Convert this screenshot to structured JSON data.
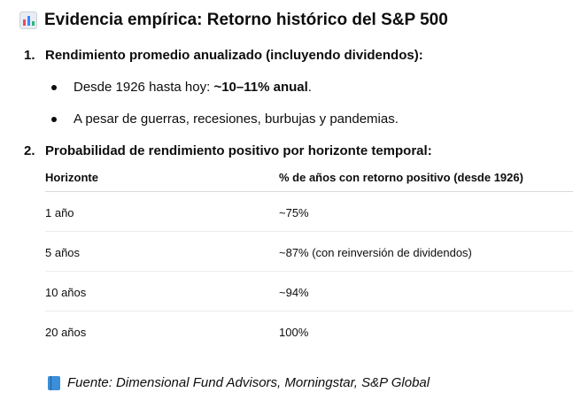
{
  "title": "Evidencia empírica: Retorno histórico del S&P 500",
  "title_icon": "bar-chart-emoji-icon",
  "section1": {
    "number": "1.",
    "heading": "Rendimiento promedio anualizado (incluyendo dividendos):",
    "bullets": [
      {
        "prefix": "Desde 1926 hasta hoy: ",
        "bold": "~10–11% anual",
        "suffix": "."
      },
      {
        "prefix": "A pesar de guerras, recesiones, burbujas y pandemias.",
        "bold": "",
        "suffix": ""
      }
    ]
  },
  "section2": {
    "number": "2.",
    "heading": "Probabilidad de rendimiento positivo por horizonte temporal:",
    "table": {
      "headers": [
        "Horizonte",
        "% de años con retorno positivo (desde 1926)"
      ],
      "rows": [
        [
          "1 año",
          "~75%"
        ],
        [
          "5 años",
          "~87% (con reinversión de dividendos)"
        ],
        [
          "10 años",
          "~94%"
        ],
        [
          "20 años",
          "100%"
        ]
      ]
    }
  },
  "source": {
    "icon": "blue-book-icon",
    "text": "Fuente: Dimensional Fund Advisors, Morningstar, S&P Global"
  }
}
